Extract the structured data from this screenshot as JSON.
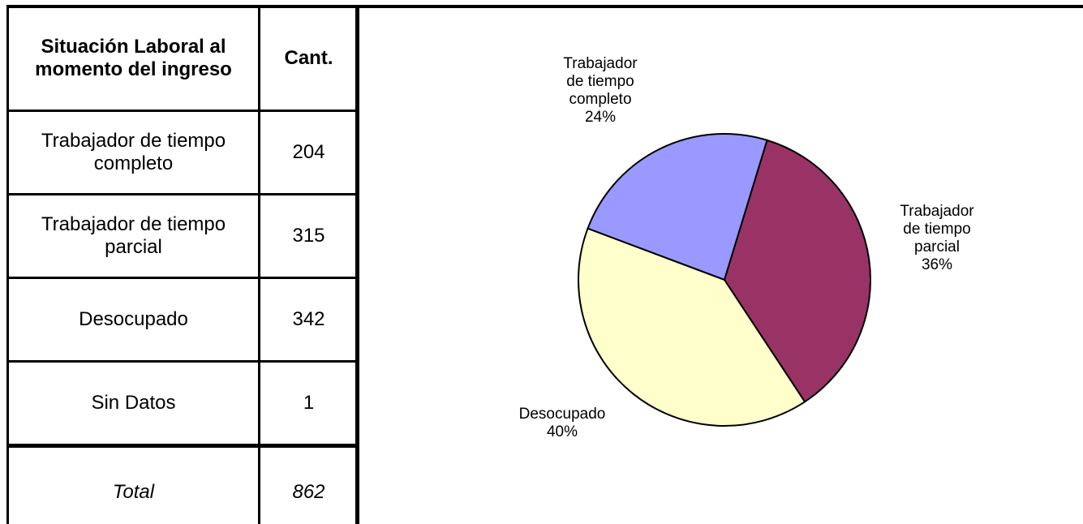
{
  "table": {
    "header": [
      "Situación Laboral al momento del ingreso",
      "Cant."
    ],
    "rows": [
      [
        "Trabajador de tiempo completo",
        "204"
      ],
      [
        "Trabajador de tiempo parcial",
        "315"
      ],
      [
        "Desocupado",
        "342"
      ],
      [
        "Sin Datos",
        "1"
      ]
    ],
    "total": [
      "Total",
      "862"
    ]
  },
  "chart_data": {
    "type": "pie",
    "categories": [
      "Trabajador de tiempo completo",
      "Trabajador de tiempo parcial",
      "Desocupado"
    ],
    "values": [
      24,
      36,
      40
    ],
    "value_labels": [
      "24%",
      "36%",
      "40%"
    ],
    "colors": [
      "#9999ff",
      "#993366",
      "#ffffcc"
    ]
  }
}
